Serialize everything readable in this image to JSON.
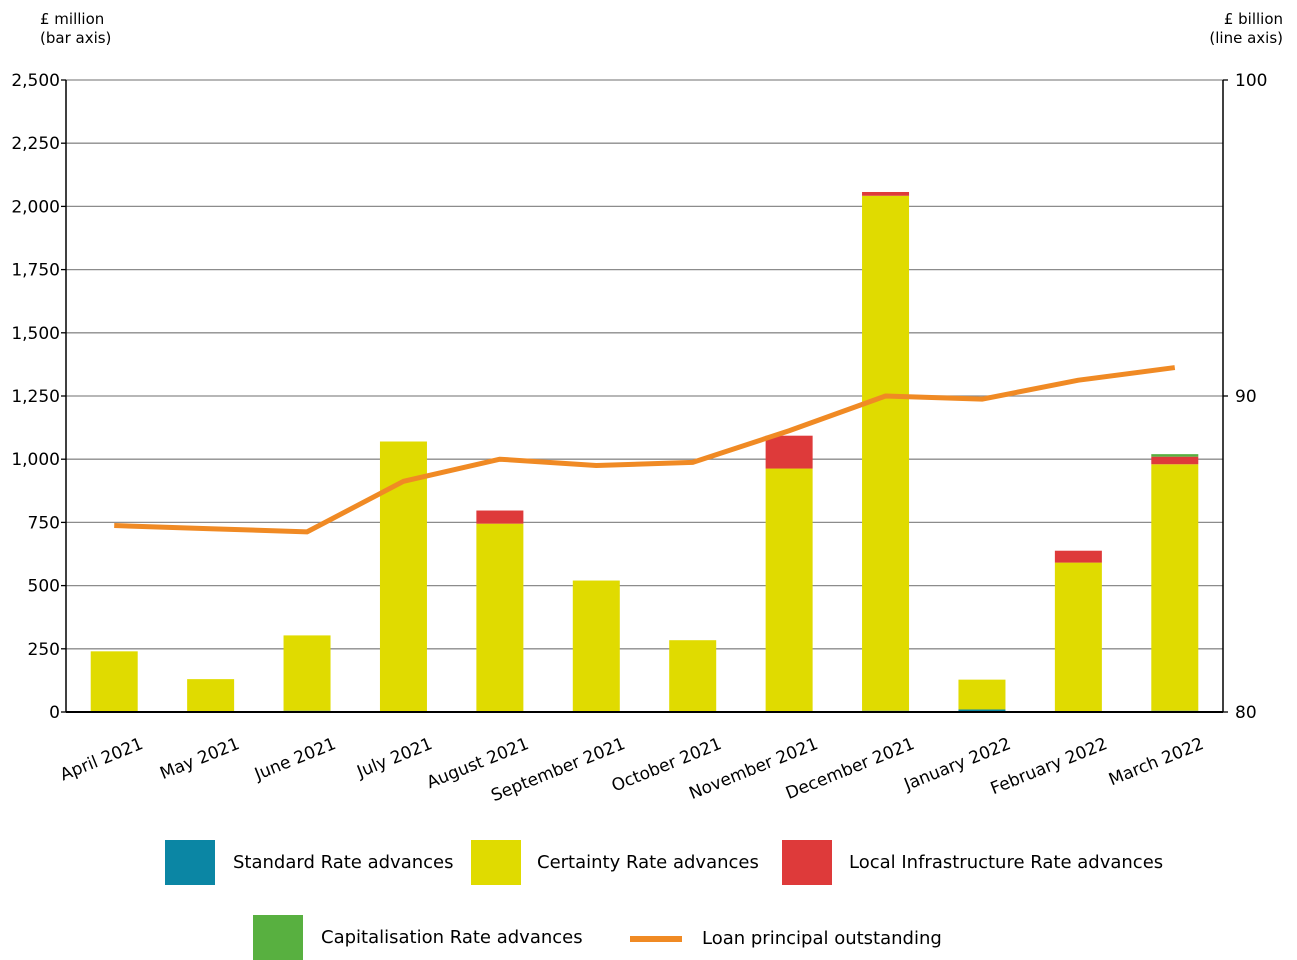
{
  "chart_data": {
    "type": "bar",
    "stacked": true,
    "categories": [
      "April 2021",
      "May 2021",
      "June 2021",
      "July 2021",
      "August 2021",
      "September 2021",
      "October 2021",
      "November 2021",
      "December 2021",
      "January 2022",
      "February 2022",
      "March 2022"
    ],
    "left_axis": {
      "title_line1": "£ million",
      "title_line2": "(bar axis)",
      "ylim": [
        0,
        2500
      ],
      "ticks": [
        0,
        250,
        500,
        750,
        1000,
        1250,
        1500,
        1750,
        2000,
        2250,
        2500
      ],
      "tick_labels": [
        "0",
        "250",
        "500",
        "750",
        "1,000",
        "1,250",
        "1,500",
        "1,750",
        "2,000",
        "2,250",
        "2,500"
      ]
    },
    "right_axis": {
      "title_line1": "£ billion",
      "title_line2": "(line axis)",
      "ylim": [
        80,
        100
      ],
      "ticks": [
        80,
        90,
        100
      ],
      "tick_labels": [
        "80",
        "90",
        "100"
      ]
    },
    "grid": true,
    "legend_position": "bottom",
    "series": [
      {
        "name": "Standard Rate advances",
        "color": "#0b86a4",
        "axis": "left",
        "values": [
          2,
          2,
          5,
          3,
          3,
          2,
          2,
          3,
          5,
          10,
          3,
          5
        ]
      },
      {
        "name": "Certainty Rate advances",
        "color": "#e0db00",
        "axis": "left",
        "values": [
          238,
          128,
          298,
          1067,
          742,
          518,
          282,
          960,
          2037,
          118,
          588,
          975
        ]
      },
      {
        "name": "Local Infrastructure Rate advances",
        "color": "#de3a3a",
        "axis": "left",
        "values": [
          0,
          0,
          0,
          0,
          52,
          0,
          0,
          130,
          15,
          0,
          47,
          30
        ]
      },
      {
        "name": "Capitalisation Rate advances",
        "color": "#58b040",
        "axis": "left",
        "values": [
          0,
          0,
          0,
          0,
          0,
          0,
          0,
          0,
          0,
          0,
          0,
          10
        ]
      }
    ],
    "line_series": {
      "name": "Loan principal outstanding",
      "color": "#f08a24",
      "axis": "right",
      "values": [
        85.9,
        85.8,
        85.7,
        87.3,
        88.0,
        87.8,
        87.9,
        88.9,
        90.0,
        89.9,
        90.5,
        90.9
      ]
    }
  }
}
